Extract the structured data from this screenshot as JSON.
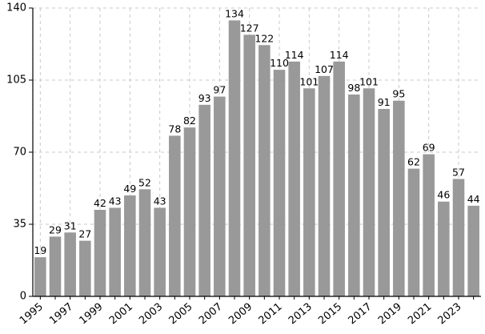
{
  "chart_data": {
    "type": "bar",
    "title": "",
    "xlabel": "",
    "ylabel": "",
    "categories": [
      "1995",
      "1996",
      "1997",
      "1998",
      "1999",
      "2000",
      "2001",
      "2002",
      "2003",
      "2004",
      "2005",
      "2006",
      "2007",
      "2008",
      "2009",
      "2010",
      "2011",
      "2012",
      "2013",
      "2014",
      "2015",
      "2016",
      "2017",
      "2018",
      "2019",
      "2020",
      "2021",
      "2022",
      "2023",
      "2024"
    ],
    "values": [
      19,
      29,
      31,
      27,
      42,
      43,
      49,
      52,
      43,
      78,
      82,
      93,
      97,
      134,
      127,
      122,
      110,
      114,
      101,
      107,
      114,
      98,
      101,
      91,
      95,
      62,
      69,
      46,
      57,
      44
    ],
    "x_tick_labels": [
      "1995",
      "1997",
      "1999",
      "2001",
      "2003",
      "2005",
      "2007",
      "2009",
      "2011",
      "2013",
      "2015",
      "2017",
      "2019",
      "2021",
      "2023"
    ],
    "y_ticks": [
      0,
      35,
      70,
      105,
      140
    ],
    "ylim": [
      0,
      140
    ],
    "grid": true,
    "bar_color": "#999999",
    "data_labels_shown": true
  }
}
